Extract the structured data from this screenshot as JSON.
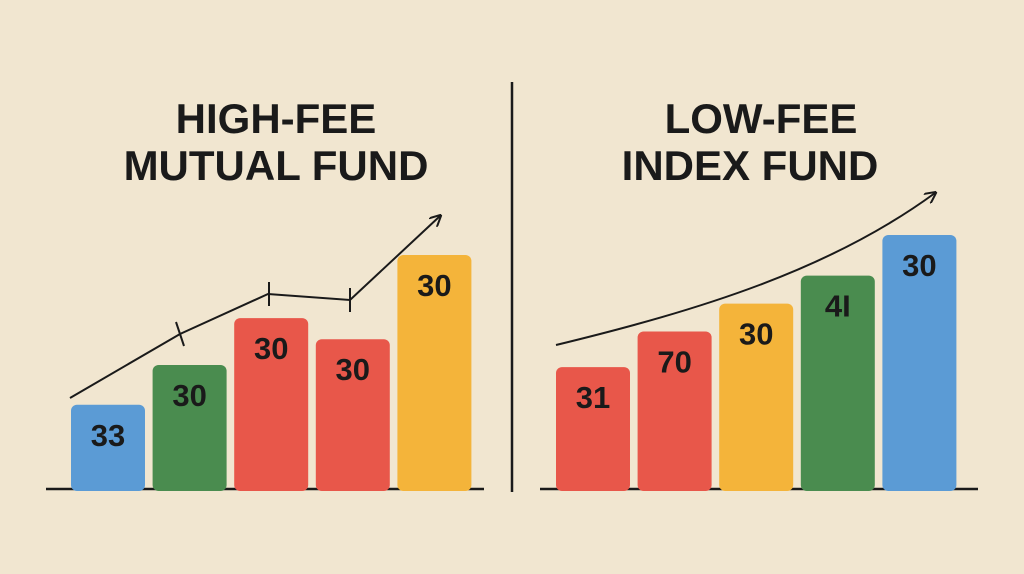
{
  "colors": {
    "background": "#f1e6d0",
    "blue": "#5b9bd5",
    "green": "#4a8c4f",
    "red": "#e8574a",
    "yellow": "#f4b43a",
    "ink": "#1a1a1a"
  },
  "chart_data": [
    {
      "type": "bar",
      "title_lines": [
        "HIGH-FEE",
        "MUTUAL FUND"
      ],
      "xlabel": "",
      "ylabel": "",
      "grid": false,
      "legend": "none",
      "trend_arrow": "rising, segmented with tick marks",
      "bars": [
        {
          "label": "33",
          "height": 0.36,
          "color": "blue"
        },
        {
          "label": "30",
          "height": 0.53,
          "color": "green"
        },
        {
          "label": "30",
          "height": 0.73,
          "color": "red"
        },
        {
          "label": "30",
          "height": 0.64,
          "color": "red"
        },
        {
          "label": "30",
          "height": 1.0,
          "color": "yellow"
        }
      ]
    },
    {
      "type": "bar",
      "title_lines": [
        "LOW-FEE",
        "INDEX FUND"
      ],
      "xlabel": "",
      "ylabel": "",
      "grid": false,
      "legend": "none",
      "trend_arrow": "rising, smooth curve",
      "bars": [
        {
          "label": "31",
          "height": 0.48,
          "color": "red"
        },
        {
          "label": "70",
          "height": 0.62,
          "color": "red"
        },
        {
          "label": "30",
          "height": 0.73,
          "color": "yellow"
        },
        {
          "label": "4I",
          "height": 0.84,
          "color": "green"
        },
        {
          "label": "30",
          "height": 1.0,
          "color": "blue"
        }
      ]
    }
  ]
}
